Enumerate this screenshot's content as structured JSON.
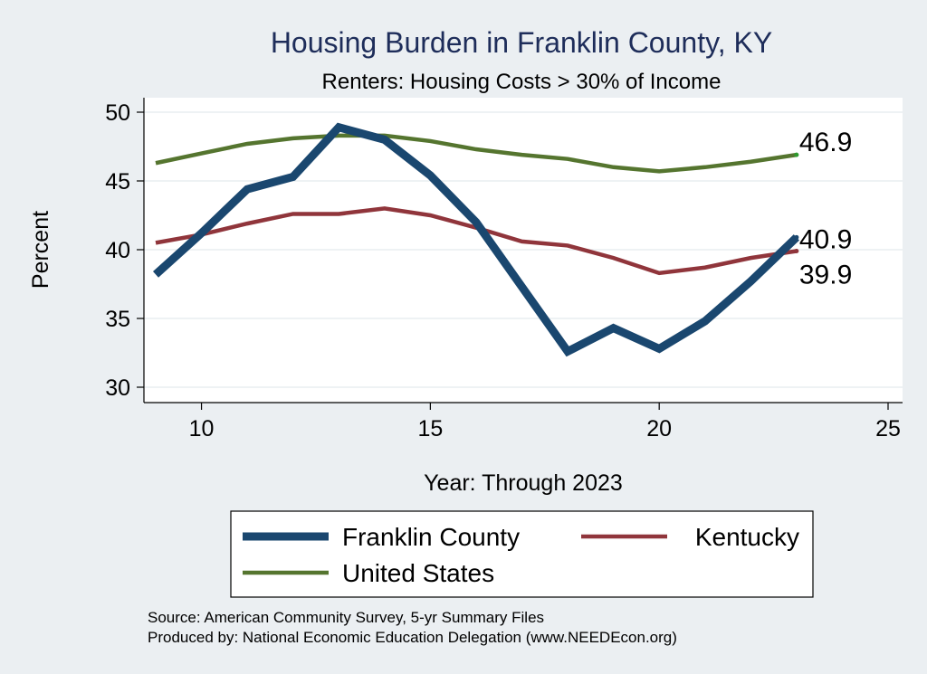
{
  "chart_data": {
    "type": "line",
    "title": "Housing Burden in Franklin County, KY",
    "subtitle": "Renters: Housing Costs > 30% of Income",
    "xlabel": "Year: Through 2023",
    "ylabel": "Percent",
    "xlim": [
      9,
      25
    ],
    "ylim": [
      30,
      50
    ],
    "x_ticks": [
      10,
      15,
      20,
      25
    ],
    "y_ticks": [
      30,
      35,
      40,
      45,
      50
    ],
    "grid": true,
    "x": [
      9,
      10,
      11,
      12,
      13,
      14,
      15,
      16,
      17,
      18,
      19,
      20,
      21,
      22,
      23
    ],
    "series": [
      {
        "name": "Franklin County",
        "color": "#1a476f",
        "values": [
          38.2,
          41.2,
          44.4,
          45.3,
          48.9,
          48.0,
          45.4,
          42.0,
          37.3,
          32.6,
          34.3,
          32.8,
          34.8,
          37.7,
          40.9
        ],
        "end_label": "40.9"
      },
      {
        "name": "Kentucky",
        "color": "#90353b",
        "values": [
          40.5,
          41.1,
          41.9,
          42.6,
          42.6,
          43.0,
          42.5,
          41.6,
          40.6,
          40.3,
          39.4,
          38.3,
          38.7,
          39.4,
          39.9
        ],
        "end_label": "39.9"
      },
      {
        "name": "United States",
        "color": "#55752f",
        "values": [
          46.3,
          47.0,
          47.7,
          48.1,
          48.3,
          48.3,
          47.9,
          47.3,
          46.9,
          46.6,
          46.0,
          45.7,
          46.0,
          46.4,
          46.9
        ],
        "end_label": "46.9"
      }
    ],
    "legend_position": "bottom",
    "notes": [
      "Source: American Community Survey, 5-yr Summary Files",
      "Produced by: National Economic Education Delegation (www.NEEDEcon.org)"
    ]
  }
}
